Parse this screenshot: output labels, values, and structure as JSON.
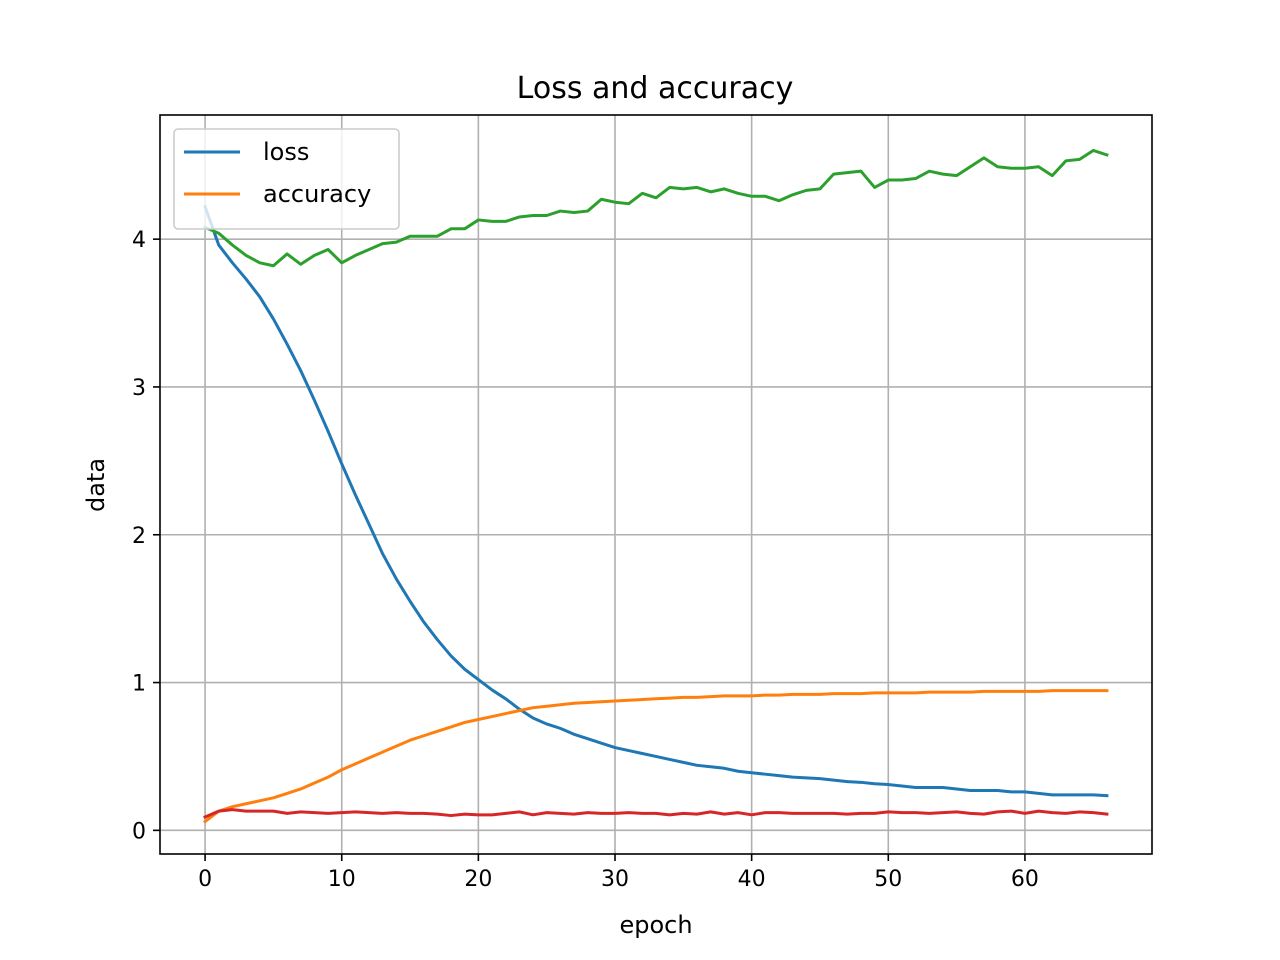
{
  "chart_data": {
    "type": "line",
    "title": "Loss and accuracy",
    "xlabel": "epoch",
    "ylabel": "data",
    "xlim": [
      -3.3,
      69.3
    ],
    "ylim": [
      -0.16,
      4.84
    ],
    "xticks": [
      0,
      10,
      20,
      30,
      40,
      50,
      60
    ],
    "yticks": [
      0,
      1,
      2,
      3,
      4
    ],
    "grid": true,
    "legend": "upper-left",
    "series": [
      {
        "name": "loss",
        "color": "#1f77b4",
        "in_legend": true,
        "values": [
          4.22,
          3.96,
          3.84,
          3.73,
          3.61,
          3.46,
          3.29,
          3.11,
          2.91,
          2.7,
          2.48,
          2.27,
          2.07,
          1.87,
          1.7,
          1.55,
          1.41,
          1.29,
          1.18,
          1.09,
          1.02,
          0.95,
          0.89,
          0.82,
          0.76,
          0.72,
          0.69,
          0.65,
          0.62,
          0.59,
          0.56,
          0.54,
          0.52,
          0.5,
          0.48,
          0.46,
          0.44,
          0.43,
          0.42,
          0.4,
          0.39,
          0.38,
          0.37,
          0.36,
          0.355,
          0.35,
          0.34,
          0.33,
          0.325,
          0.315,
          0.31,
          0.3,
          0.29,
          0.29,
          0.29,
          0.28,
          0.27,
          0.27,
          0.27,
          0.26,
          0.26,
          0.25,
          0.24,
          0.24,
          0.24,
          0.24,
          0.235
        ]
      },
      {
        "name": "accuracy",
        "color": "#ff7f0e",
        "in_legend": true,
        "values": [
          0.06,
          0.13,
          0.16,
          0.18,
          0.2,
          0.22,
          0.25,
          0.28,
          0.32,
          0.36,
          0.41,
          0.45,
          0.49,
          0.53,
          0.57,
          0.61,
          0.64,
          0.67,
          0.7,
          0.73,
          0.75,
          0.77,
          0.79,
          0.81,
          0.83,
          0.84,
          0.85,
          0.86,
          0.865,
          0.87,
          0.875,
          0.88,
          0.885,
          0.89,
          0.895,
          0.9,
          0.9,
          0.905,
          0.91,
          0.91,
          0.91,
          0.915,
          0.915,
          0.92,
          0.92,
          0.92,
          0.925,
          0.925,
          0.925,
          0.93,
          0.93,
          0.93,
          0.93,
          0.935,
          0.935,
          0.935,
          0.935,
          0.94,
          0.94,
          0.94,
          0.94,
          0.94,
          0.945,
          0.945,
          0.945,
          0.945,
          0.945
        ]
      },
      {
        "name": "",
        "color": "#2ca02c",
        "in_legend": false,
        "values": [
          4.08,
          4.04,
          3.96,
          3.89,
          3.84,
          3.82,
          3.9,
          3.83,
          3.89,
          3.93,
          3.84,
          3.89,
          3.93,
          3.97,
          3.98,
          4.02,
          4.02,
          4.02,
          4.07,
          4.07,
          4.13,
          4.12,
          4.12,
          4.15,
          4.16,
          4.16,
          4.19,
          4.18,
          4.19,
          4.27,
          4.25,
          4.24,
          4.31,
          4.28,
          4.35,
          4.34,
          4.35,
          4.32,
          4.34,
          4.31,
          4.29,
          4.29,
          4.26,
          4.3,
          4.33,
          4.34,
          4.44,
          4.45,
          4.46,
          4.35,
          4.4,
          4.4,
          4.41,
          4.46,
          4.44,
          4.43,
          4.49,
          4.55,
          4.49,
          4.48,
          4.48,
          4.49,
          4.43,
          4.53,
          4.54,
          4.6,
          4.57
        ]
      },
      {
        "name": "",
        "color": "#d62728",
        "in_legend": false,
        "values": [
          0.09,
          0.13,
          0.14,
          0.13,
          0.13,
          0.13,
          0.115,
          0.125,
          0.12,
          0.115,
          0.12,
          0.125,
          0.12,
          0.115,
          0.12,
          0.115,
          0.115,
          0.11,
          0.1,
          0.11,
          0.105,
          0.105,
          0.115,
          0.125,
          0.105,
          0.12,
          0.115,
          0.11,
          0.12,
          0.115,
          0.115,
          0.12,
          0.115,
          0.115,
          0.105,
          0.115,
          0.11,
          0.125,
          0.11,
          0.12,
          0.105,
          0.12,
          0.12,
          0.115,
          0.115,
          0.115,
          0.115,
          0.11,
          0.115,
          0.115,
          0.125,
          0.12,
          0.12,
          0.115,
          0.12,
          0.125,
          0.115,
          0.11,
          0.125,
          0.13,
          0.115,
          0.13,
          0.12,
          0.115,
          0.125,
          0.12,
          0.11
        ]
      }
    ]
  }
}
